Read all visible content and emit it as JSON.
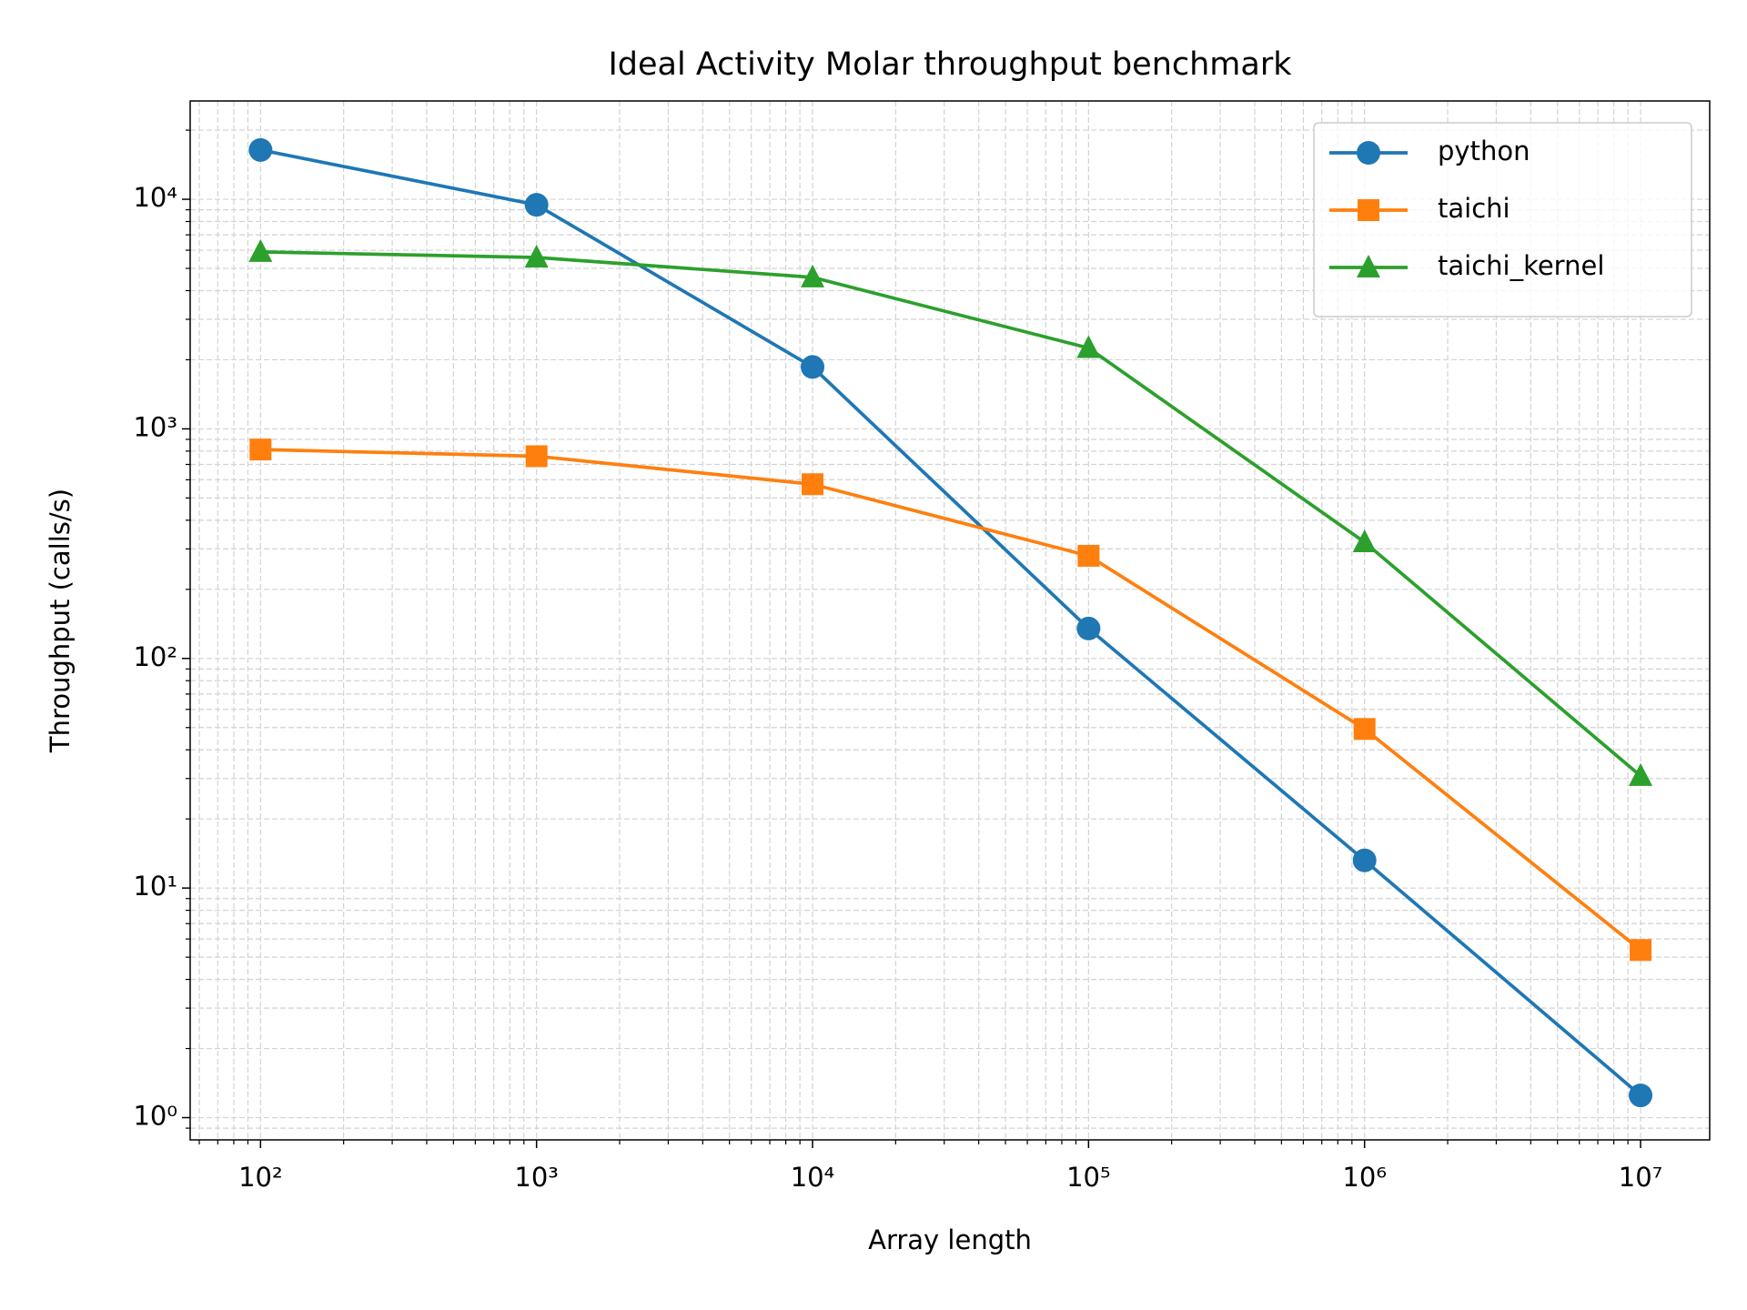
{
  "chart_data": {
    "type": "line",
    "title": "Ideal Activity Molar throughput benchmark",
    "x_label": "Array length",
    "y_label": "Throughput (calls/s)",
    "x": [
      100,
      1000,
      10000,
      100000,
      1000000,
      10000000
    ],
    "series": [
      {
        "name": "python",
        "color": "#1f77b4",
        "marker": "circle",
        "values": [
          16400,
          9460,
          1860,
          135,
          13.2,
          1.25
        ]
      },
      {
        "name": "taichi",
        "color": "#ff7f0e",
        "marker": "square",
        "values": [
          813,
          760,
          574,
          280,
          49.3,
          5.37
        ]
      },
      {
        "name": "taichi_kernel",
        "color": "#2ca02c",
        "marker": "triangle",
        "values": [
          5900,
          5580,
          4570,
          2250,
          321,
          30.8
        ]
      }
    ],
    "xscale": "log",
    "yscale": "log",
    "xlim": [
      55.6,
      17800000
    ],
    "ylim": [
      0.8,
      26800
    ],
    "xticks": [
      {
        "value": 100,
        "label": "10²"
      },
      {
        "value": 1000,
        "label": "10³"
      },
      {
        "value": 10000,
        "label": "10⁴"
      },
      {
        "value": 100000,
        "label": "10⁵"
      },
      {
        "value": 1000000,
        "label": "10⁶"
      },
      {
        "value": 10000000,
        "label": "10⁷"
      }
    ],
    "yticks": [
      {
        "value": 1,
        "label": "10⁰"
      },
      {
        "value": 10,
        "label": "10¹"
      },
      {
        "value": 100,
        "label": "10²"
      },
      {
        "value": 1000,
        "label": "10³"
      },
      {
        "value": 10000,
        "label": "10⁴"
      }
    ],
    "xminorticks": [
      60,
      70,
      80,
      90,
      200,
      300,
      400,
      500,
      600,
      700,
      800,
      900,
      2000,
      3000,
      4000,
      5000,
      6000,
      7000,
      8000,
      9000,
      20000,
      30000,
      40000,
      50000,
      60000,
      70000,
      80000,
      90000,
      200000,
      300000,
      400000,
      500000,
      600000,
      700000,
      800000,
      900000,
      2000000,
      3000000,
      4000000,
      5000000,
      6000000,
      7000000,
      8000000,
      9000000
    ],
    "yminorticks": [
      0.9,
      2,
      3,
      4,
      5,
      6,
      7,
      8,
      9,
      20,
      30,
      40,
      50,
      60,
      70,
      80,
      90,
      200,
      300,
      400,
      500,
      600,
      700,
      800,
      900,
      2000,
      3000,
      4000,
      5000,
      6000,
      7000,
      8000,
      9000,
      20000
    ],
    "grid": true,
    "legend": "upper right"
  }
}
